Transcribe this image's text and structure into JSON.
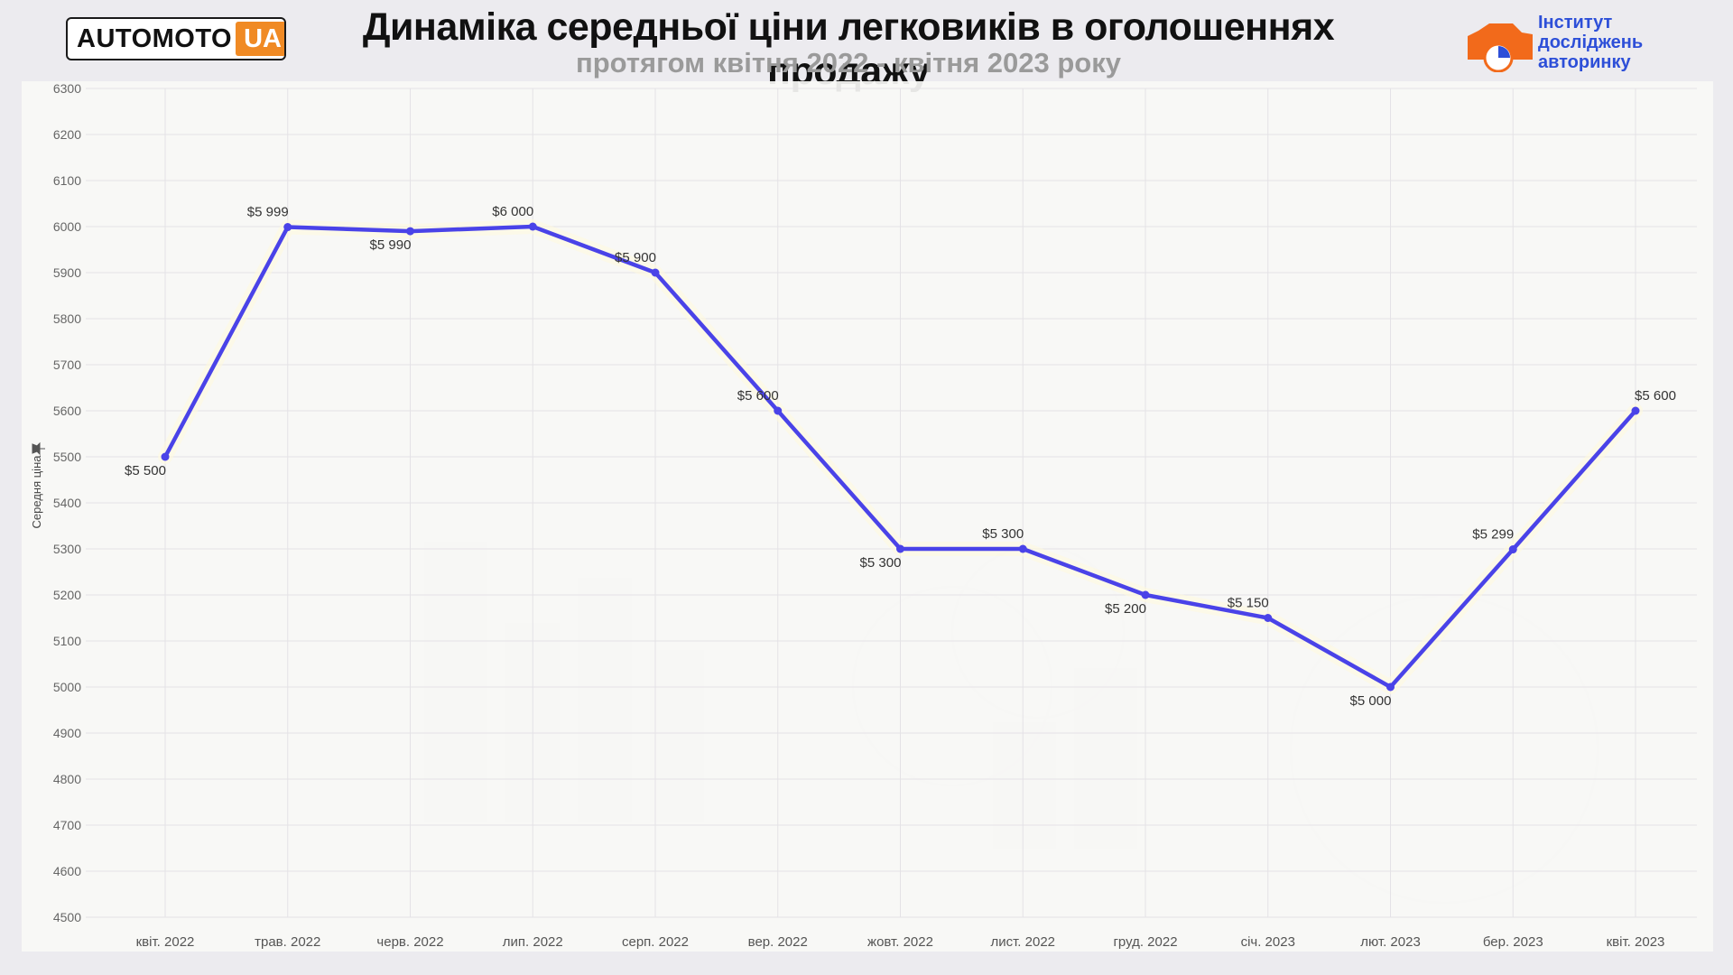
{
  "header": {
    "logo_left_a": "AUTOMOTO",
    "logo_left_b": "UA",
    "title": "Динаміка середньої ціни легковиків в оголошеннях продажу",
    "subtitle": "протягом квітня 2022 - квітня 2023 року",
    "logo_right_lines": [
      "Інститут",
      "досліджень",
      "авторинку"
    ]
  },
  "colors": {
    "line": "#4a43e8",
    "accent_orange": "#f08a24",
    "brand_blue": "#2d4fd8"
  },
  "chart_data": {
    "type": "line",
    "title": "Динаміка середньої ціни легковиків в оголошеннях продажу",
    "subtitle": "протягом квітня 2022 - квітня 2023 року",
    "ylabel": "Середня ціна",
    "xlabel": "",
    "ylim": [
      4500,
      6300
    ],
    "yticks": [
      4500,
      4600,
      4700,
      4800,
      4900,
      5000,
      5100,
      5200,
      5300,
      5400,
      5500,
      5600,
      5700,
      5800,
      5900,
      6000,
      6100,
      6200,
      6300
    ],
    "grid": true,
    "categories": [
      "квіт. 2022",
      "трав. 2022",
      "черв. 2022",
      "лип. 2022",
      "серп. 2022",
      "вер. 2022",
      "жовт. 2022",
      "лист. 2022",
      "груд. 2022",
      "січ. 2023",
      "лют. 2023",
      "бер. 2023",
      "квіт. 2023"
    ],
    "series": [
      {
        "values": [
          5500,
          5999,
          5990,
          6000,
          5900,
          5600,
          5300,
          5300,
          5200,
          5150,
          5000,
          5299,
          5600
        ],
        "labels": [
          "$5 500",
          "$5 999",
          "$5 990",
          "$6 000",
          "$5 900",
          "$5 600",
          "$5 300",
          "$5 300",
          "$5 200",
          "$5 150",
          "$5 000",
          "$5 299",
          "$5 600"
        ],
        "label_pos": [
          "below",
          "above",
          "below",
          "above",
          "above",
          "above",
          "below",
          "above",
          "below",
          "above",
          "below",
          "above",
          "above"
        ]
      }
    ]
  }
}
